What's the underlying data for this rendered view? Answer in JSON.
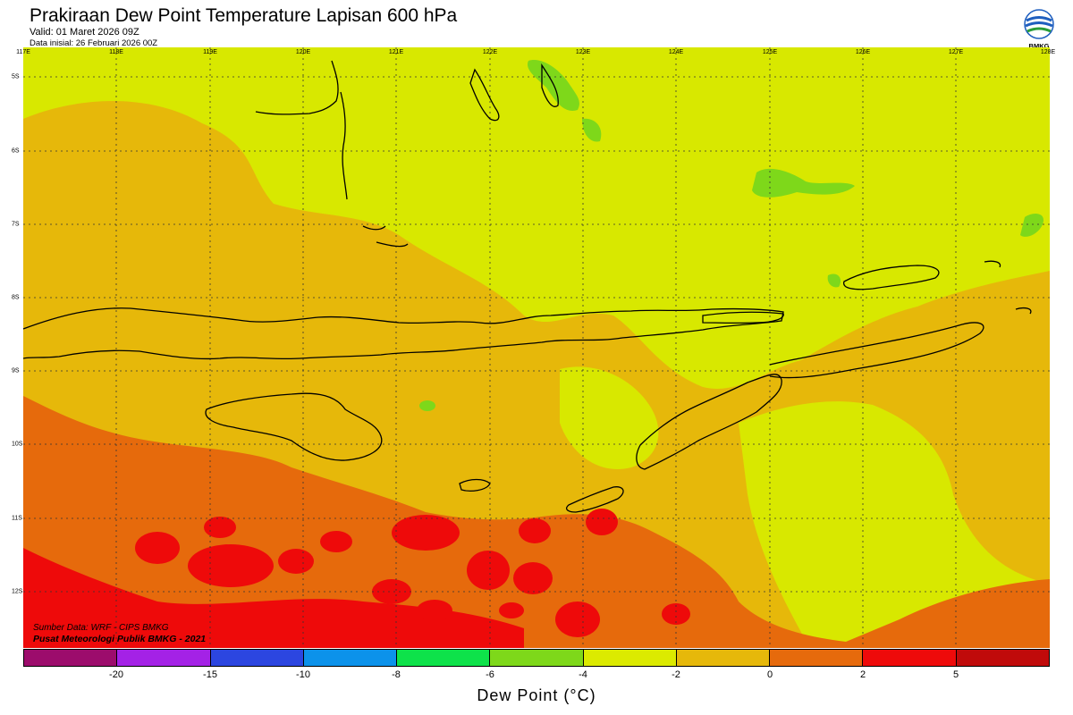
{
  "header": {
    "title": "Prakiraan Dew Point Temperature Lapisan 600 hPa",
    "valid": "Valid: 01 Maret 2026 09Z",
    "initial": "Data inisial: 26 Februari 2026 00Z"
  },
  "logo": {
    "text": "BMKG",
    "icon": "bmkg-logo-icon"
  },
  "map": {
    "lon_labels": [
      "117E",
      "118E",
      "119E",
      "120E",
      "121E",
      "122E",
      "123E",
      "124E",
      "125E",
      "126E",
      "127E",
      "128E"
    ],
    "lat_labels": [
      "5S",
      "6S",
      "7S",
      "8S",
      "9S",
      "10S",
      "11S",
      "12S"
    ]
  },
  "footer": {
    "source": "Sumber Data: WRF - CIPS BMKG",
    "institution": "Pusat Meteorologi Publik BMKG - 2021"
  },
  "legend": {
    "title": "Dew Point (°C)",
    "colors": [
      "#9c0c6c",
      "#a422e6",
      "#2c46e0",
      "#0c92ea",
      "#0ee24a",
      "#7ed81a",
      "#dcea00",
      "#e6b80a",
      "#e66a0c",
      "#ee0a0a",
      "#c00a0a"
    ],
    "ticks": [
      "-20",
      "-15",
      "-10",
      "-8",
      "-6",
      "-4",
      "-2",
      "0",
      "2",
      "5"
    ]
  },
  "colors": {
    "yellow": "#d8e800",
    "orange_light": "#e6b80a",
    "orange": "#e66a0c",
    "red": "#ee0a0a",
    "green": "#7ed81a"
  }
}
